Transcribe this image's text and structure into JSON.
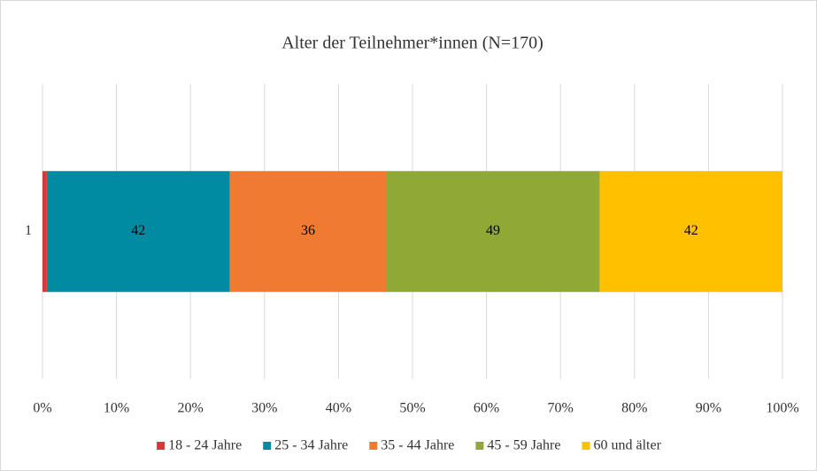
{
  "chart_data": {
    "type": "bar",
    "orientation": "horizontal",
    "stacking": "percent",
    "title": "Alter der Teilnehmer*innen (N=170)",
    "categories": [
      "1"
    ],
    "series": [
      {
        "name": "18 - 24 Jahre",
        "color": "#d9383a",
        "values": [
          1
        ],
        "value_labels": [
          null
        ]
      },
      {
        "name": "25 - 34 Jahre",
        "color": "#008ba3",
        "values": [
          42
        ],
        "value_labels": [
          "42"
        ]
      },
      {
        "name": "35 - 44 Jahre",
        "color": "#f07a32",
        "values": [
          36
        ],
        "value_labels": [
          "36"
        ]
      },
      {
        "name": "45 - 59 Jahre",
        "color": "#8fa836",
        "values": [
          49
        ],
        "value_labels": [
          "49"
        ]
      },
      {
        "name": "60 und älter",
        "color": "#ffc000",
        "values": [
          42
        ],
        "value_labels": [
          "42"
        ]
      }
    ],
    "xlim": [
      0,
      100
    ],
    "xticks": [
      {
        "value": 0,
        "label": "0%"
      },
      {
        "value": 10,
        "label": "10%"
      },
      {
        "value": 20,
        "label": "20%"
      },
      {
        "value": 30,
        "label": "30%"
      },
      {
        "value": 40,
        "label": "40%"
      },
      {
        "value": 50,
        "label": "50%"
      },
      {
        "value": 60,
        "label": "60%"
      },
      {
        "value": 70,
        "label": "70%"
      },
      {
        "value": 80,
        "label": "80%"
      },
      {
        "value": 90,
        "label": "90%"
      },
      {
        "value": 100,
        "label": "100%"
      }
    ],
    "grid": true,
    "legend": "bottom"
  }
}
